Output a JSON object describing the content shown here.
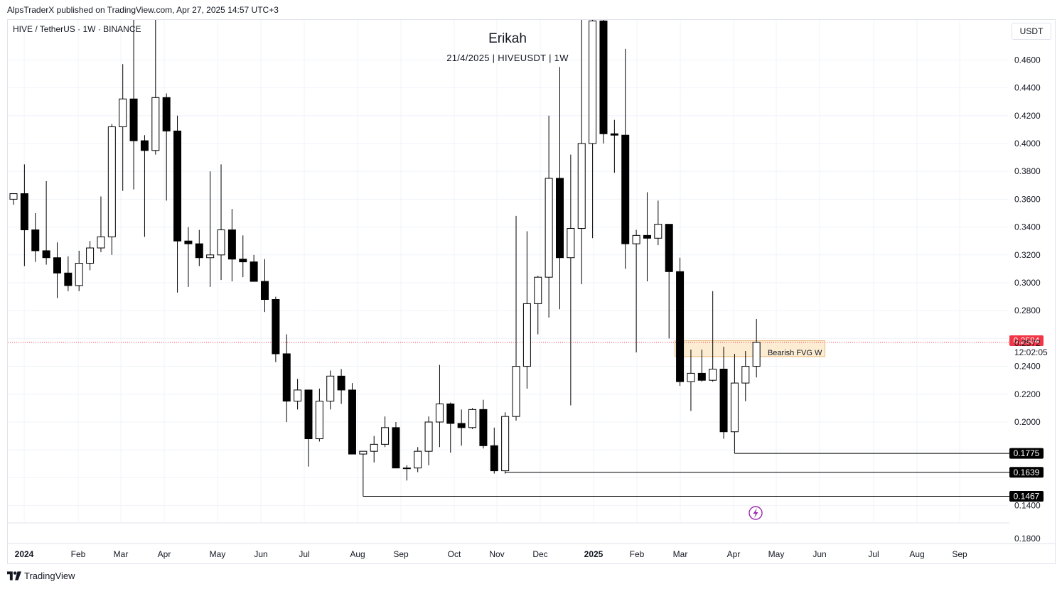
{
  "publisher": "AlpsTraderX published on TradingView.com, Apr 27, 2025 14:57 UTC+3",
  "symbol_line": "HIVE / TetherUS · 1W · BINANCE",
  "currency": "USDT",
  "brand": "TradingView",
  "chart_data": {
    "type": "candlestick",
    "title": "Erikah",
    "subtitle": "21/4/2025 | HIVEUSDT | 1W",
    "y_ticks": [
      "0.4600",
      "0.4400",
      "0.4200",
      "0.4000",
      "0.3800",
      "0.3600",
      "0.3400",
      "0.3200",
      "0.3000",
      "0.2800",
      "0.2400",
      "0.2200",
      "0.2000",
      "0.1400"
    ],
    "y_extra_tick": "0.1800",
    "x_labels": [
      "2024",
      "Feb",
      "Mar",
      "Apr",
      "May",
      "Jun",
      "Jul",
      "Aug",
      "Sep",
      "Oct",
      "Nov",
      "Dec",
      "2025",
      "Feb",
      "Mar",
      "Apr",
      "May",
      "Jun",
      "Jul",
      "Aug",
      "Sep"
    ],
    "bold_x_labels": [
      "2024",
      "2025"
    ],
    "candles": [
      {
        "o": 0.36,
        "h": 0.364,
        "l": 0.356,
        "c": 0.364
      },
      {
        "o": 0.364,
        "h": 0.385,
        "l": 0.312,
        "c": 0.338
      },
      {
        "o": 0.338,
        "h": 0.35,
        "l": 0.315,
        "c": 0.323
      },
      {
        "o": 0.323,
        "h": 0.373,
        "l": 0.313,
        "c": 0.318
      },
      {
        "o": 0.318,
        "h": 0.329,
        "l": 0.289,
        "c": 0.307
      },
      {
        "o": 0.307,
        "h": 0.319,
        "l": 0.294,
        "c": 0.298
      },
      {
        "o": 0.298,
        "h": 0.323,
        "l": 0.294,
        "c": 0.314
      },
      {
        "o": 0.314,
        "h": 0.33,
        "l": 0.309,
        "c": 0.325
      },
      {
        "o": 0.325,
        "h": 0.362,
        "l": 0.322,
        "c": 0.333
      },
      {
        "o": 0.333,
        "h": 0.414,
        "l": 0.32,
        "c": 0.412
      },
      {
        "o": 0.412,
        "h": 0.457,
        "l": 0.366,
        "c": 0.432
      },
      {
        "o": 0.432,
        "h": 0.495,
        "l": 0.367,
        "c": 0.402
      },
      {
        "o": 0.402,
        "h": 0.406,
        "l": 0.333,
        "c": 0.395
      },
      {
        "o": 0.395,
        "h": 0.493,
        "l": 0.392,
        "c": 0.433
      },
      {
        "o": 0.433,
        "h": 0.436,
        "l": 0.359,
        "c": 0.409
      },
      {
        "o": 0.409,
        "h": 0.42,
        "l": 0.293,
        "c": 0.33
      },
      {
        "o": 0.33,
        "h": 0.34,
        "l": 0.297,
        "c": 0.328
      },
      {
        "o": 0.328,
        "h": 0.338,
        "l": 0.312,
        "c": 0.318
      },
      {
        "o": 0.318,
        "h": 0.38,
        "l": 0.297,
        "c": 0.32
      },
      {
        "o": 0.32,
        "h": 0.385,
        "l": 0.302,
        "c": 0.338
      },
      {
        "o": 0.338,
        "h": 0.353,
        "l": 0.301,
        "c": 0.317
      },
      {
        "o": 0.317,
        "h": 0.334,
        "l": 0.304,
        "c": 0.315
      },
      {
        "o": 0.315,
        "h": 0.32,
        "l": 0.303,
        "c": 0.301
      },
      {
        "o": 0.301,
        "h": 0.317,
        "l": 0.279,
        "c": 0.288
      },
      {
        "o": 0.288,
        "h": 0.29,
        "l": 0.243,
        "c": 0.249
      },
      {
        "o": 0.249,
        "h": 0.263,
        "l": 0.2,
        "c": 0.215
      },
      {
        "o": 0.215,
        "h": 0.231,
        "l": 0.209,
        "c": 0.223
      },
      {
        "o": 0.223,
        "h": 0.223,
        "l": 0.168,
        "c": 0.188
      },
      {
        "o": 0.188,
        "h": 0.224,
        "l": 0.186,
        "c": 0.215
      },
      {
        "o": 0.215,
        "h": 0.237,
        "l": 0.209,
        "c": 0.233
      },
      {
        "o": 0.233,
        "h": 0.238,
        "l": 0.213,
        "c": 0.223
      },
      {
        "o": 0.223,
        "h": 0.228,
        "l": 0.178,
        "c": 0.177
      },
      {
        "o": 0.177,
        "h": 0.179,
        "l": 0.15,
        "c": 0.179
      },
      {
        "o": 0.179,
        "h": 0.19,
        "l": 0.171,
        "c": 0.184
      },
      {
        "o": 0.184,
        "h": 0.204,
        "l": 0.182,
        "c": 0.196
      },
      {
        "o": 0.196,
        "h": 0.2,
        "l": 0.168,
        "c": 0.167
      },
      {
        "o": 0.167,
        "h": 0.169,
        "l": 0.158,
        "c": 0.167
      },
      {
        "o": 0.167,
        "h": 0.182,
        "l": 0.164,
        "c": 0.179
      },
      {
        "o": 0.179,
        "h": 0.204,
        "l": 0.169,
        "c": 0.2
      },
      {
        "o": 0.2,
        "h": 0.241,
        "l": 0.182,
        "c": 0.213
      },
      {
        "o": 0.213,
        "h": 0.214,
        "l": 0.178,
        "c": 0.199
      },
      {
        "o": 0.199,
        "h": 0.209,
        "l": 0.183,
        "c": 0.196
      },
      {
        "o": 0.196,
        "h": 0.21,
        "l": 0.195,
        "c": 0.209
      },
      {
        "o": 0.209,
        "h": 0.216,
        "l": 0.181,
        "c": 0.183
      },
      {
        "o": 0.183,
        "h": 0.196,
        "l": 0.163,
        "c": 0.165
      },
      {
        "o": 0.165,
        "h": 0.207,
        "l": 0.163,
        "c": 0.204
      },
      {
        "o": 0.204,
        "h": 0.348,
        "l": 0.201,
        "c": 0.24
      },
      {
        "o": 0.24,
        "h": 0.337,
        "l": 0.224,
        "c": 0.285
      },
      {
        "o": 0.285,
        "h": 0.305,
        "l": 0.263,
        "c": 0.304
      },
      {
        "o": 0.304,
        "h": 0.42,
        "l": 0.275,
        "c": 0.375
      },
      {
        "o": 0.375,
        "h": 0.455,
        "l": 0.281,
        "c": 0.318
      },
      {
        "o": 0.318,
        "h": 0.392,
        "l": 0.212,
        "c": 0.339
      },
      {
        "o": 0.339,
        "h": 0.497,
        "l": 0.299,
        "c": 0.4
      },
      {
        "o": 0.4,
        "h": 0.53,
        "l": 0.332,
        "c": 0.488
      },
      {
        "o": 0.488,
        "h": 0.52,
        "l": 0.4,
        "c": 0.407
      },
      {
        "o": 0.407,
        "h": 0.417,
        "l": 0.379,
        "c": 0.406
      },
      {
        "o": 0.406,
        "h": 0.468,
        "l": 0.31,
        "c": 0.328
      },
      {
        "o": 0.328,
        "h": 0.338,
        "l": 0.25,
        "c": 0.334
      },
      {
        "o": 0.334,
        "h": 0.365,
        "l": 0.301,
        "c": 0.332
      },
      {
        "o": 0.332,
        "h": 0.359,
        "l": 0.327,
        "c": 0.342
      },
      {
        "o": 0.342,
        "h": 0.342,
        "l": 0.26,
        "c": 0.308
      },
      {
        "o": 0.308,
        "h": 0.318,
        "l": 0.226,
        "c": 0.229
      },
      {
        "o": 0.229,
        "h": 0.252,
        "l": 0.208,
        "c": 0.235
      },
      {
        "o": 0.235,
        "h": 0.252,
        "l": 0.229,
        "c": 0.23
      },
      {
        "o": 0.23,
        "h": 0.294,
        "l": 0.229,
        "c": 0.238
      },
      {
        "o": 0.238,
        "h": 0.254,
        "l": 0.188,
        "c": 0.193
      },
      {
        "o": 0.193,
        "h": 0.249,
        "l": 0.179,
        "c": 0.228
      },
      {
        "o": 0.228,
        "h": 0.251,
        "l": 0.215,
        "c": 0.24
      },
      {
        "o": 0.24,
        "h": 0.274,
        "l": 0.232,
        "c": 0.2572
      }
    ],
    "fvg": {
      "label": "Bearish FVG W",
      "top": 0.2584,
      "bottom": 0.247,
      "from_index": 61,
      "to_index": 74
    },
    "current_price": {
      "value": 0.2572,
      "label": "0.2572",
      "countdown": "12:02:05"
    },
    "price_tags": [
      {
        "value": 0.2584,
        "label": "0.2584",
        "color": "#f23645"
      },
      {
        "value": 0.1775,
        "label": "0.1775",
        "color": "#000000",
        "from_index": 66
      },
      {
        "value": 0.1639,
        "label": "0.1639",
        "color": "#000000",
        "from_index": 45
      },
      {
        "value": 0.1467,
        "label": "0.1467",
        "color": "#000000",
        "from_index": 32
      }
    ],
    "bolt_icon": "lightning-bolt-icon",
    "grid": true,
    "colors": {
      "bull_fill": "#ffffff",
      "bear_fill": "#000000",
      "outline": "#000000",
      "fvg_fill": "#fbe9c9",
      "fvg_border": "#e8b77a",
      "price_line": "#f23645"
    }
  }
}
